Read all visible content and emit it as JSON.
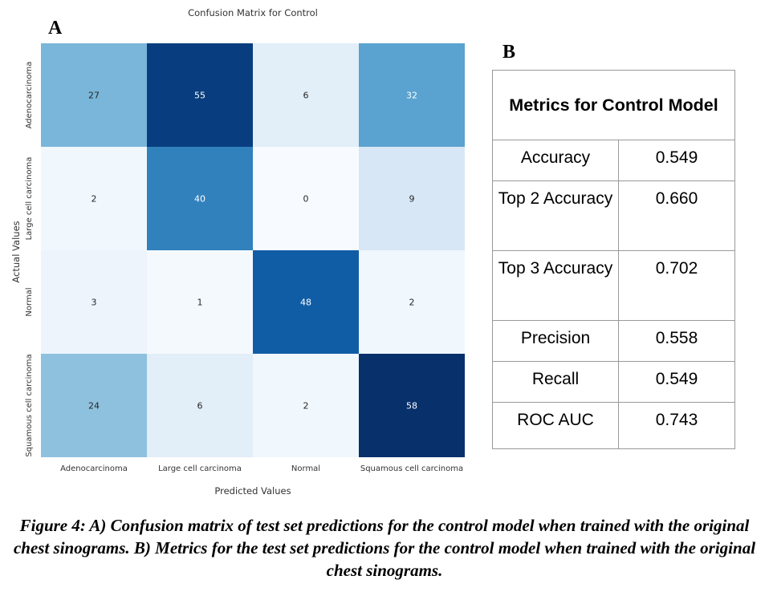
{
  "panel_a_letter": "A",
  "panel_b_letter": "B",
  "chart_data": {
    "type": "heatmap",
    "title": "Confusion Matrix for Control",
    "xlabel": "Predicted Values",
    "ylabel": "Actual Values",
    "x_categories": [
      "Adenocarcinoma",
      "Large cell carcinoma",
      "Normal",
      "Squamous cell carcinoma"
    ],
    "y_categories": [
      "Adenocarcinoma",
      "Large cell carcinoma",
      "Normal",
      "Squamous cell carcinoma"
    ],
    "values": [
      [
        27,
        55,
        6,
        32
      ],
      [
        2,
        40,
        0,
        9
      ],
      [
        3,
        1,
        48,
        2
      ],
      [
        24,
        6,
        2,
        58
      ]
    ],
    "colormap": "Blues"
  },
  "metrics": {
    "title": "Metrics for Control Model",
    "rows": [
      {
        "name": "Accuracy",
        "value": "0.549"
      },
      {
        "name": "Top 2 Accuracy",
        "value": "0.660"
      },
      {
        "name": "Top 3 Accuracy",
        "value": "0.702"
      },
      {
        "name": "Precision",
        "value": "0.558"
      },
      {
        "name": "Recall",
        "value": "0.549"
      },
      {
        "name": "ROC AUC",
        "value": "0.743"
      }
    ]
  },
  "caption": "Figure 4: A) Confusion matrix of test set predictions for the control model when trained with the original chest sinograms. B) Metrics for the test set predictions for the control model when trained with the original chest sinograms."
}
